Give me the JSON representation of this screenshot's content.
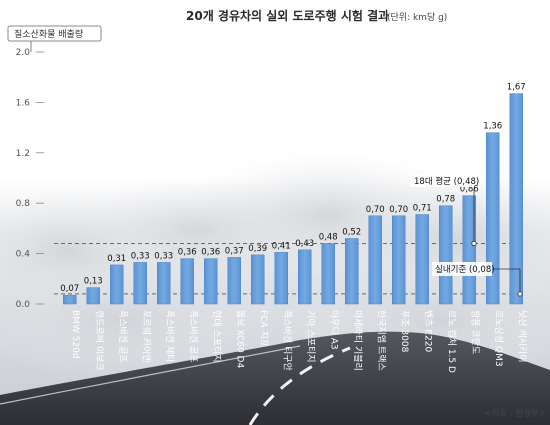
{
  "colors": {
    "bar": "#6aa0dc",
    "bar_dark": "#4d86c8",
    "avg_line": "#d9422e",
    "limit_line": "#6a6a6a",
    "road": "#3a3d44",
    "sky": "#f3f4f6"
  },
  "chart_data": {
    "type": "bar",
    "title": "20개 경유차의 실외 도로주행 시험 결과",
    "subtitle": "(단위: km당 g)",
    "ylabel": "질소산화물 배출량",
    "ylim": [
      0,
      2.0
    ],
    "yticks": [
      "0.0",
      "0.4",
      "0.8",
      "1.2",
      "1.6",
      "2.0"
    ],
    "grid": false,
    "categories": [
      "BMW 520d",
      "랜드로버 이보크",
      "폭스바겐 골프",
      "포르쉐 카이엔",
      "폭스바겐 제타",
      "폭스바겐 골프",
      "현대 스포티지",
      "볼보 XC60 D4",
      "FCA 지프",
      "폭스바겐 티구안",
      "기아 스포티지",
      "아우디 A3",
      "마세라티 기블리",
      "한국지엠 트랙스",
      "푸조 3008",
      "벤츠 E220",
      "르노 캡처 1.5 D",
      "쌍용 코란도",
      "르노삼성 QM3",
      "닛산 캐시카이"
    ],
    "value_labels": [
      "0,07",
      "0,13",
      "0,31",
      "0,33",
      "0,33",
      "0,36",
      "0,36",
      "0,37",
      "0,39",
      "0,41",
      "0,43",
      "0,48",
      "0,52",
      "0,70",
      "0,70",
      "0,71",
      "0,78",
      "0,86",
      "1,36",
      "1,67"
    ],
    "values": [
      0.07,
      0.13,
      0.31,
      0.33,
      0.33,
      0.36,
      0.36,
      0.37,
      0.39,
      0.41,
      0.43,
      0.48,
      0.52,
      0.7,
      0.7,
      0.71,
      0.78,
      0.86,
      1.36,
      1.67
    ],
    "reference_lines": [
      {
        "label": "18대 평균 (0,48)",
        "value": 0.48,
        "style": "dashed",
        "color": "#d9422e"
      },
      {
        "label": "실내기준 (0,08)",
        "value": 0.08,
        "style": "dashed",
        "color": "#6a6a6a"
      }
    ],
    "source": "<자료 : 환경부>"
  }
}
